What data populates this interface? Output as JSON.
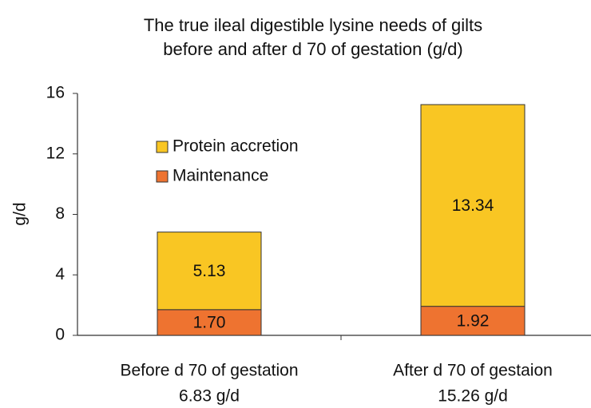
{
  "chart_data": {
    "type": "stacked_bar",
    "title": [
      "The true ileal digestible lysine needs of gilts",
      "before and after d 70 of gestation  (g/d)"
    ],
    "ylabel": "g/d",
    "categories": [
      [
        "Before d 70 of gestation",
        "6.83 g/d"
      ],
      [
        "After d 70 of gestaion",
        "15.26 g/d"
      ]
    ],
    "series": [
      {
        "name": "Maintenance",
        "color": "#ee7330",
        "values": [
          1.7,
          1.92
        ],
        "value_labels": [
          "1.70",
          "1.92"
        ]
      },
      {
        "name": "Protein accretion",
        "color": "#f9c623",
        "values": [
          5.13,
          13.34
        ]
      }
    ],
    "ylim": [
      0,
      16
    ],
    "yticks": [
      0,
      4,
      8,
      12,
      16
    ],
    "grid": false
  }
}
